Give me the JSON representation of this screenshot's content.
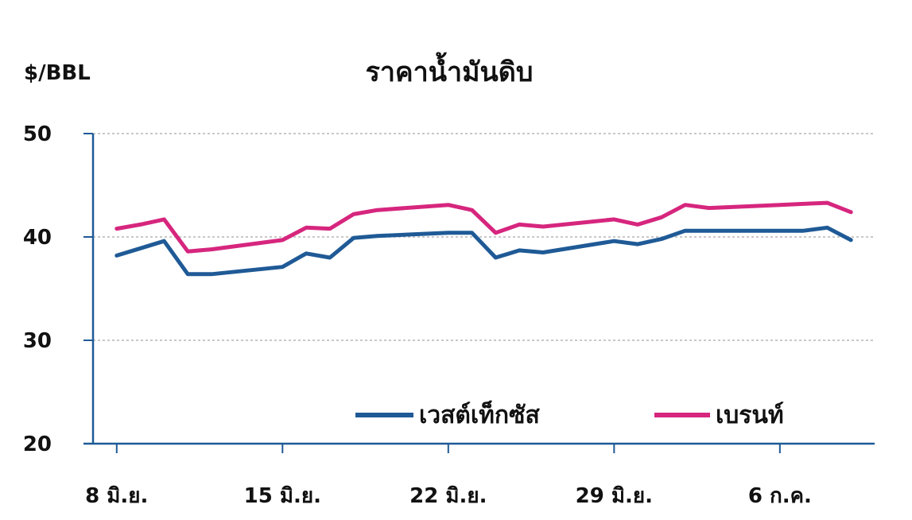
{
  "chart_data": {
    "type": "line",
    "title": "ราคาน้ำมันดิบ",
    "ylabel": "$/BBL",
    "xlabel": "",
    "ylim": [
      20,
      50
    ],
    "yticks": [
      20,
      30,
      40,
      50
    ],
    "grid": true,
    "legend_position": "bottom-right",
    "x_tick_labels": [
      "8 มิ.ย.",
      "15 มิ.ย.",
      "22 มิ.ย.",
      "29 มิ.ย.",
      "6 ก.ค."
    ],
    "x_tick_dates": [
      "2020-06-08",
      "2020-06-15",
      "2020-06-22",
      "2020-06-29",
      "2020-07-06"
    ],
    "x": [
      "2020-06-08",
      "2020-06-09",
      "2020-06-10",
      "2020-06-11",
      "2020-06-12",
      "2020-06-15",
      "2020-06-16",
      "2020-06-17",
      "2020-06-18",
      "2020-06-19",
      "2020-06-22",
      "2020-06-23",
      "2020-06-24",
      "2020-06-25",
      "2020-06-26",
      "2020-06-29",
      "2020-06-30",
      "2020-07-01",
      "2020-07-02",
      "2020-07-03",
      "2020-07-06",
      "2020-07-07",
      "2020-07-08",
      "2020-07-09"
    ],
    "series": [
      {
        "name": "เวสต์เท็กซัส",
        "color": "#1f5a96",
        "values": [
          38.2,
          38.9,
          39.6,
          36.4,
          36.4,
          37.1,
          38.4,
          38.0,
          39.9,
          40.1,
          40.4,
          40.4,
          38.0,
          38.7,
          38.5,
          39.6,
          39.3,
          39.8,
          40.6,
          40.6,
          40.6,
          40.6,
          40.9,
          39.7
        ]
      },
      {
        "name": "เบรนท์",
        "color": "#d6267e",
        "values": [
          40.8,
          41.2,
          41.7,
          38.6,
          38.8,
          39.7,
          40.9,
          40.8,
          42.2,
          42.6,
          43.1,
          42.6,
          40.4,
          41.2,
          41.0,
          41.7,
          41.2,
          41.9,
          43.1,
          42.8,
          43.1,
          43.2,
          43.3,
          42.4
        ]
      }
    ]
  }
}
